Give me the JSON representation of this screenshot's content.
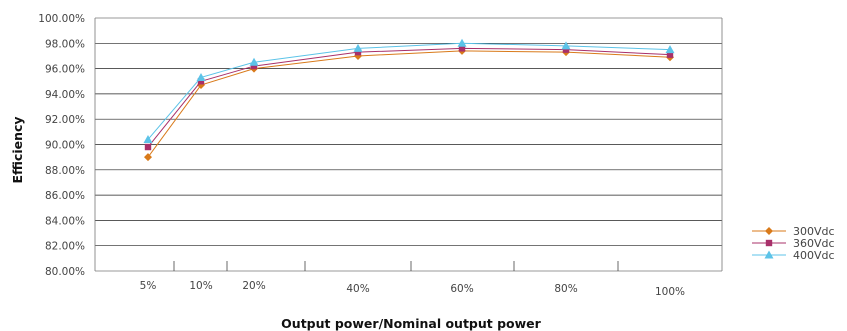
{
  "chart_data": {
    "type": "line",
    "xlabel": "Output power/Nominal output power",
    "ylabel": "Efficiency",
    "categories": [
      "5%",
      "10%",
      "20%",
      "40%",
      "60%",
      "80%",
      "100%"
    ],
    "x": [
      5,
      10,
      20,
      40,
      60,
      80,
      100
    ],
    "ylim": [
      80,
      100
    ],
    "yticks": [
      "80.00%",
      "82.00%",
      "84.00%",
      "86.00%",
      "88.00%",
      "90.00%",
      "92.00%",
      "94.00%",
      "96.00%",
      "98.00%",
      "100.00%"
    ],
    "grid": true,
    "legend_position": "right",
    "series": [
      {
        "name": "300Vdc",
        "values": [
          89.0,
          94.7,
          96.0,
          97.0,
          97.4,
          97.3,
          96.9
        ],
        "color": "#d97a1a",
        "marker": "diamond"
      },
      {
        "name": "360Vdc",
        "values": [
          89.8,
          95.0,
          96.2,
          97.3,
          97.6,
          97.5,
          97.1
        ],
        "color": "#a8306a",
        "marker": "square"
      },
      {
        "name": "400Vdc",
        "values": [
          90.4,
          95.3,
          96.5,
          97.6,
          98.0,
          97.8,
          97.5
        ],
        "color": "#5cc3e8",
        "marker": "triangle"
      }
    ]
  }
}
